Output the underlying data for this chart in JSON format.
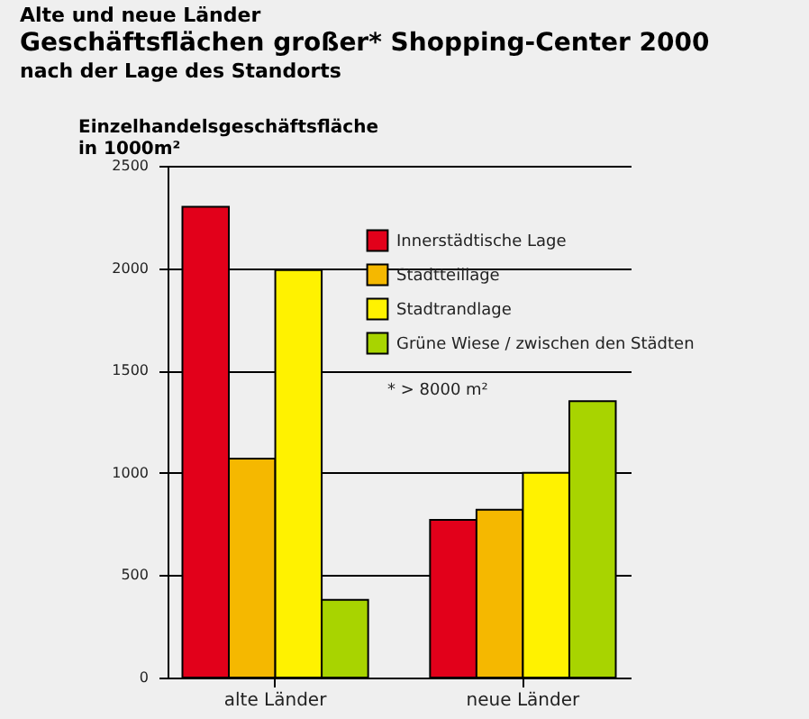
{
  "chart_data": {
    "type": "bar",
    "title": "Geschäftsflächen großer* Shopping-Center 2000",
    "subtitle": "nach der Lage des Standorts",
    "ylabel": "Einzelhandelsgeschäftsfläche in 1000m²",
    "annotations": [
      "Alte und neue Länder",
      "* > 8000 m²"
    ],
    "categories": [
      "alte Länder",
      "neue Länder"
    ],
    "series": [
      {
        "name": "Innerstädtische Lage",
        "color": "#e2001a",
        "values": [
          2300,
          770
        ]
      },
      {
        "name": "Stadtteillage",
        "color": "#f5b800",
        "values": [
          1070,
          820
        ]
      },
      {
        "name": "Stadtrandlage",
        "color": "#fff200",
        "values": [
          1990,
          1000
        ]
      },
      {
        "name": "Grüne Wiese / zwischen den Städten",
        "color": "#a8d400",
        "values": [
          380,
          1350
        ]
      }
    ],
    "ylim": [
      0,
      2500
    ],
    "yticks": [
      0,
      500,
      1000,
      1500,
      2000,
      2500
    ],
    "grid": "y",
    "legend": "top right"
  }
}
